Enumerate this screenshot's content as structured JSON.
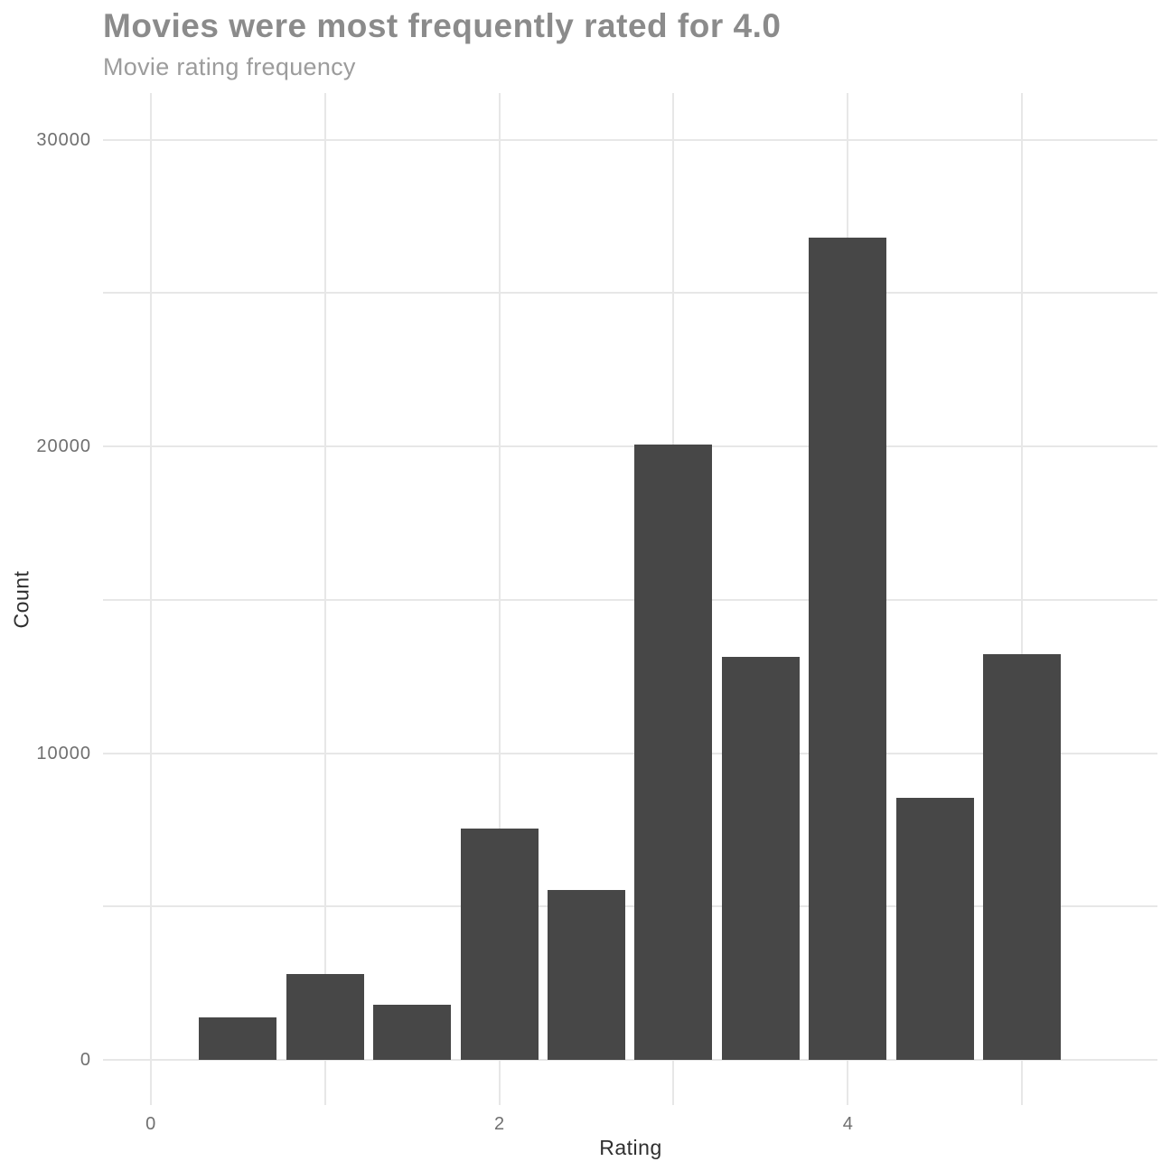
{
  "header": {
    "title": "Movies were most frequently rated for 4.0",
    "subtitle": "Movie rating frequency"
  },
  "chart_data": {
    "type": "bar",
    "title": "Movies were most frequently rated for 4.0",
    "subtitle": "Movie rating frequency",
    "xlabel": "Rating",
    "ylabel": "Count",
    "x": [
      0.5,
      1.0,
      1.5,
      2.0,
      2.5,
      3.0,
      3.5,
      4.0,
      4.5,
      5.0
    ],
    "values": [
      1370,
      2811,
      1791,
      7551,
      5550,
      20047,
      13136,
      26818,
      8551,
      13211
    ],
    "bin_width": 0.5,
    "x_tick_labels": [
      "0",
      "2",
      "4"
    ],
    "x_ticks": [
      0,
      2,
      4
    ],
    "x_gridlines": [
      0,
      1,
      2,
      3,
      4,
      5
    ],
    "y_tick_labels": [
      "0",
      "10000",
      "20000",
      "30000"
    ],
    "y_ticks": [
      0,
      10000,
      20000,
      30000
    ],
    "y_gridlines": [
      0,
      5000,
      10000,
      15000,
      20000,
      25000,
      30000
    ],
    "xlim": [
      -0.27,
      5.78
    ],
    "ylim": [
      0,
      31500
    ],
    "grid": true,
    "legend_position": "none"
  },
  "colors": {
    "background": "#ffffff",
    "bar": "#474747",
    "grid": "#e7e7e7",
    "title": "#8b8b8b",
    "subtitle": "#9c9c9c",
    "tick_label": "#6f6f6f",
    "axis_title": "#2f2f2f"
  }
}
